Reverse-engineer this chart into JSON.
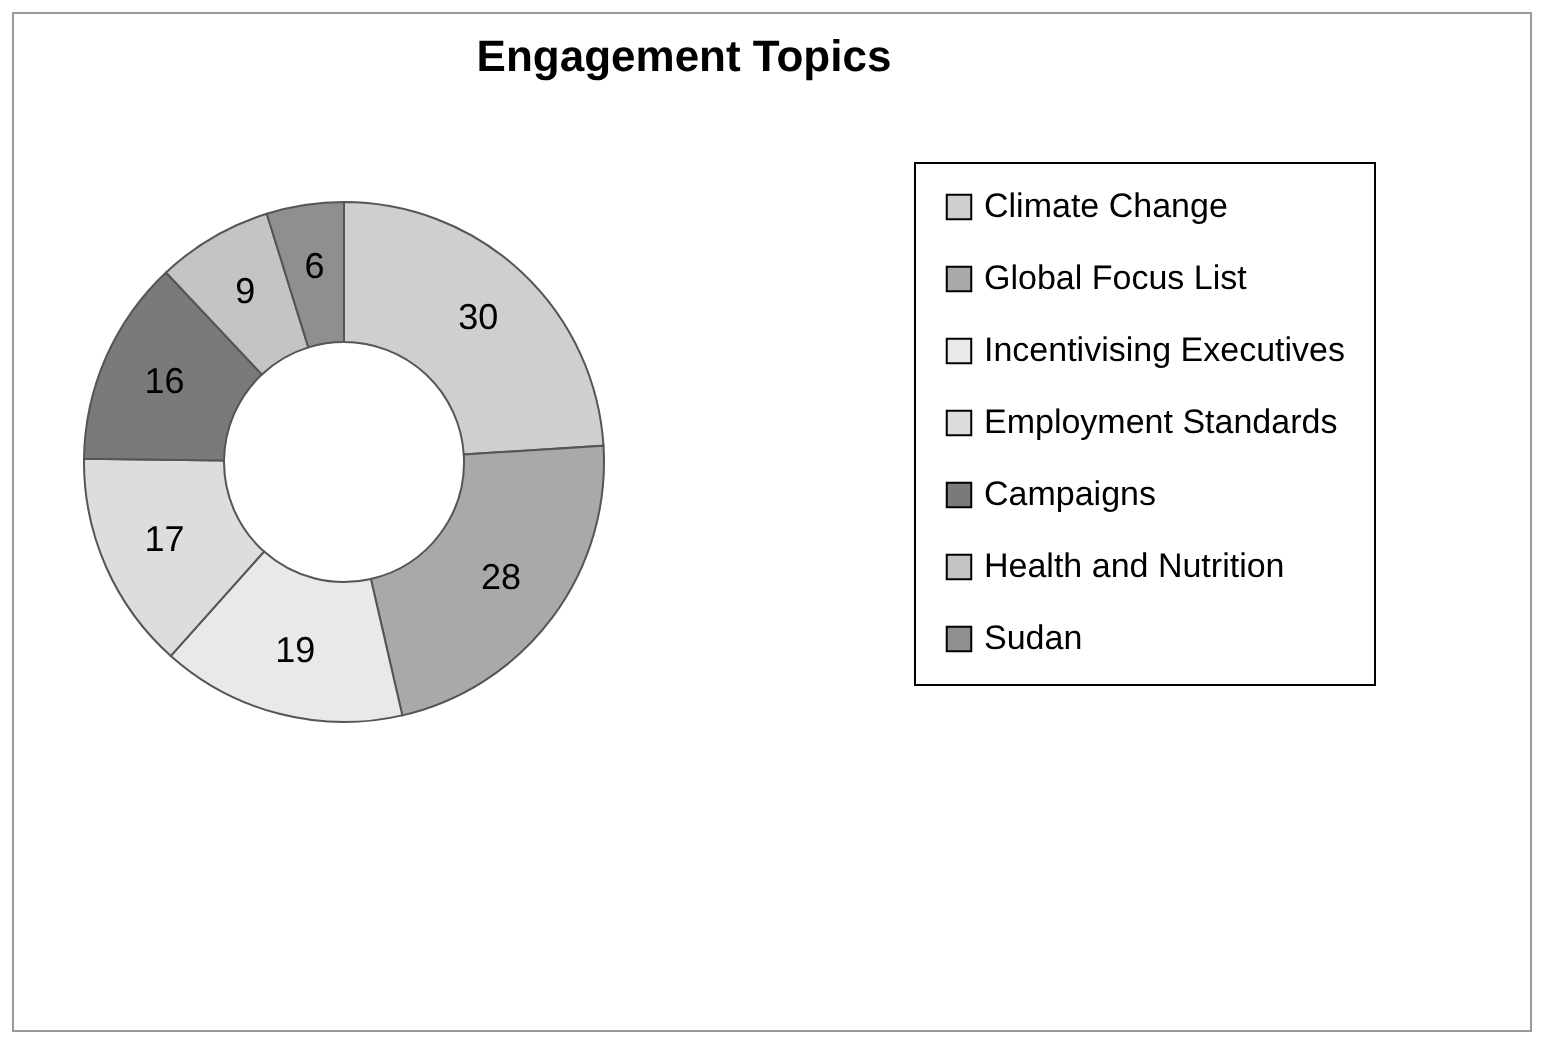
{
  "chart_data": {
    "type": "donut",
    "title": "Engagement Topics",
    "categories": [
      "Climate Change",
      "Global Focus List",
      "Incentivising Executives",
      "Employment Standards",
      "Campaigns",
      "Health and Nutrition",
      "Sudan"
    ],
    "values": [
      30,
      28,
      19,
      17,
      16,
      9,
      6
    ],
    "colors": [
      "#cfcfcf",
      "#a9a9a9",
      "#e9e9e9",
      "#dddddd",
      "#7a7a7a",
      "#c4c4c4",
      "#8f8f8f"
    ],
    "data_labels": true,
    "legend": "right"
  }
}
